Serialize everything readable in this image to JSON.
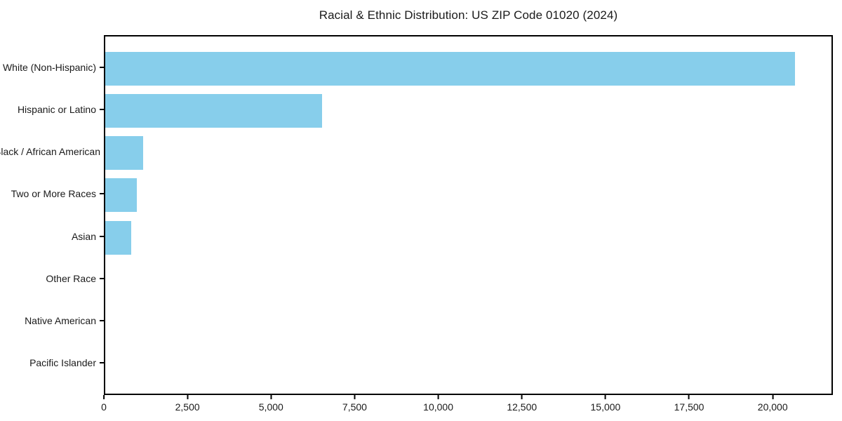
{
  "figure": {
    "background_color": "#ffffff",
    "frame_color": "#000000",
    "text_color": "#1a1a1a"
  },
  "chart_data": {
    "type": "bar",
    "orientation": "horizontal",
    "title": "Racial & Ethnic Distribution: US ZIP Code 01020 (2024)",
    "categories": [
      "White (Non-Hispanic)",
      "Hispanic or Latino",
      "Black / African American",
      "Two or More Races",
      "Asian",
      "Other Race",
      "Native American",
      "Pacific Islander"
    ],
    "values": [
      20700,
      6500,
      1140,
      950,
      775,
      0,
      0,
      0
    ],
    "xlabel": "",
    "ylabel": "",
    "xlim": [
      0,
      21800
    ],
    "x_ticks": [
      0,
      2500,
      5000,
      7500,
      10000,
      12500,
      15000,
      17500,
      20000
    ],
    "x_tick_labels": [
      "0",
      "2,500",
      "5,000",
      "7,500",
      "10,000",
      "12,500",
      "15,000",
      "17,500",
      "20,000"
    ],
    "bar_color": "#87CEEB",
    "grid": false,
    "legend": null
  }
}
